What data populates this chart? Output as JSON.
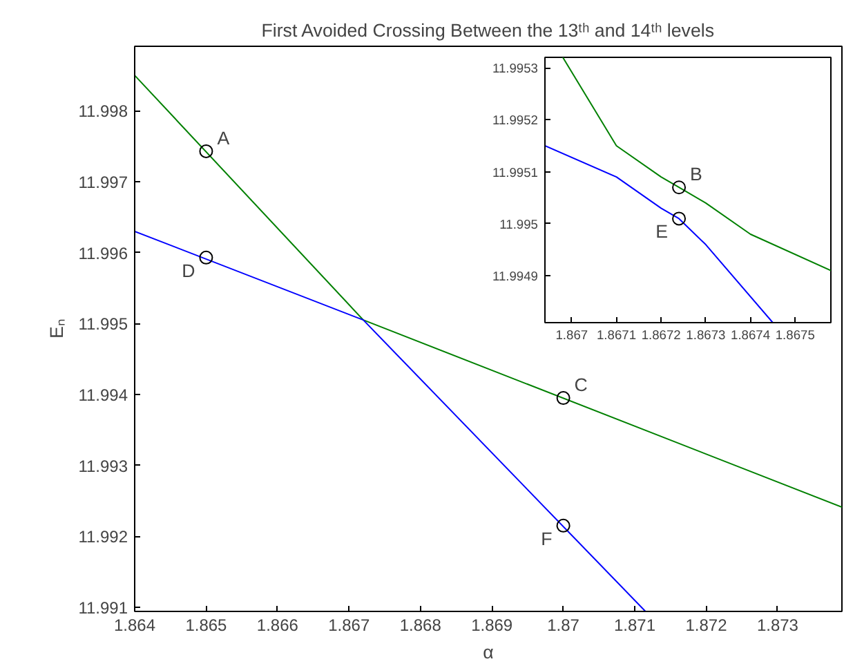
{
  "chart_data": [
    {
      "type": "line",
      "title": "First Avoided Crossing Between the 13ᵗʰ and 14ᵗʰ levels",
      "xlabel": "α",
      "ylabel": "Eₙ",
      "xlim": [
        1.864,
        1.8739
      ],
      "ylim": [
        11.99094,
        11.99891
      ],
      "xticks": [
        1.864,
        1.865,
        1.866,
        1.867,
        1.868,
        1.869,
        1.87,
        1.871,
        1.872,
        1.873
      ],
      "yticks": [
        11.991,
        11.992,
        11.993,
        11.994,
        11.995,
        11.996,
        11.997,
        11.998
      ],
      "series": [
        {
          "color": "#008000",
          "x": [
            1.864,
            1.8672,
            1.8739
          ],
          "values": [
            11.9985,
            11.99505,
            11.99241
          ]
        },
        {
          "color": "#0000ff",
          "x": [
            1.864,
            1.8672,
            1.87115
          ],
          "values": [
            11.9963,
            11.99505,
            11.99094
          ]
        },
        {
          "type": "scatter",
          "marker": "circle",
          "color": "#000000",
          "x": [
            1.865,
            1.865,
            1.87,
            1.87
          ],
          "values": [
            11.99743,
            11.99593,
            11.99395,
            11.99215
          ]
        }
      ],
      "annotations": [
        {
          "text": "A",
          "x": 1.865,
          "y": 11.99743
        },
        {
          "text": "D",
          "x": 1.865,
          "y": 11.99593
        },
        {
          "text": "C",
          "x": 1.87,
          "y": 11.99395
        },
        {
          "text": "F",
          "x": 1.87,
          "y": 11.99215
        }
      ]
    },
    {
      "type": "line",
      "xlim": [
        1.86694,
        1.86758
      ],
      "ylim": [
        11.99481,
        11.99532
      ],
      "xticks": [
        1.867,
        1.8671,
        1.8672,
        1.8673,
        1.8674,
        1.8675
      ],
      "yticks": [
        11.9949,
        11.995,
        11.9951,
        11.9952,
        11.9953
      ],
      "series": [
        {
          "color": "#008000",
          "x": [
            1.86698,
            1.8671,
            1.8672,
            1.86724,
            1.8673,
            1.8674,
            1.86758
          ],
          "values": [
            11.99532,
            11.99515,
            11.99509,
            11.99507,
            11.99504,
            11.99498,
            11.99491
          ]
        },
        {
          "color": "#0000ff",
          "x": [
            1.86694,
            1.8671,
            1.8672,
            1.86724,
            1.8673,
            1.86745
          ],
          "values": [
            11.99515,
            11.99509,
            11.99503,
            11.99501,
            11.99496,
            11.99481
          ]
        },
        {
          "type": "scatter",
          "marker": "circle",
          "color": "#000000",
          "x": [
            1.86724,
            1.86724
          ],
          "values": [
            11.99507,
            11.99501
          ]
        }
      ],
      "annotations": [
        {
          "text": "B",
          "x": 1.86724,
          "y": 11.99507
        },
        {
          "text": "E",
          "x": 1.86724,
          "y": 11.99501
        }
      ]
    }
  ]
}
